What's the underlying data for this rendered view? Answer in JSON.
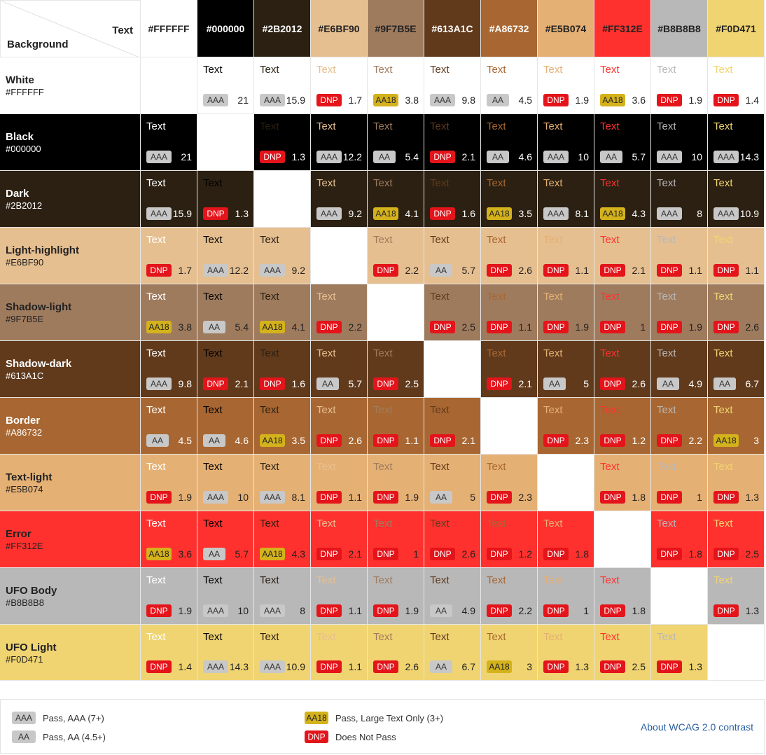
{
  "header": {
    "text_label": "Text",
    "background_label": "Background"
  },
  "sample_text": "Text",
  "colors": [
    {
      "name": "White",
      "hex": "#FFFFFF",
      "label_color": "#222222"
    },
    {
      "name": "Black",
      "hex": "#000000",
      "label_color": "#ffffff"
    },
    {
      "name": "Dark",
      "hex": "#2B2012",
      "label_color": "#ffffff"
    },
    {
      "name": "Light-highlight",
      "hex": "#E6BF90",
      "label_color": "#222222"
    },
    {
      "name": "Shadow-light",
      "hex": "#9F7B5E",
      "label_color": "#222222"
    },
    {
      "name": "Shadow-dark",
      "hex": "#613A1C",
      "label_color": "#ffffff"
    },
    {
      "name": "Border",
      "hex": "#A86732",
      "label_color": "#ffffff"
    },
    {
      "name": "Text-light",
      "hex": "#E5B074",
      "label_color": "#222222"
    },
    {
      "name": "Error",
      "hex": "#FF312E",
      "label_color": "#222222"
    },
    {
      "name": "UFO Body",
      "hex": "#B8B8B8",
      "label_color": "#222222"
    },
    {
      "name": "UFO Light",
      "hex": "#F0D471",
      "label_color": "#222222"
    }
  ],
  "grid": [
    [
      null,
      [
        "AAA",
        "21"
      ],
      [
        "AAA",
        "15.9"
      ],
      [
        "DNP",
        "1.7"
      ],
      [
        "AA18",
        "3.8"
      ],
      [
        "AAA",
        "9.8"
      ],
      [
        "AA",
        "4.5"
      ],
      [
        "DNP",
        "1.9"
      ],
      [
        "AA18",
        "3.6"
      ],
      [
        "DNP",
        "1.9"
      ],
      [
        "DNP",
        "1.4"
      ]
    ],
    [
      [
        "AAA",
        "21"
      ],
      null,
      [
        "DNP",
        "1.3"
      ],
      [
        "AAA",
        "12.2"
      ],
      [
        "AA",
        "5.4"
      ],
      [
        "DNP",
        "2.1"
      ],
      [
        "AA",
        "4.6"
      ],
      [
        "AAA",
        "10"
      ],
      [
        "AA",
        "5.7"
      ],
      [
        "AAA",
        "10"
      ],
      [
        "AAA",
        "14.3"
      ]
    ],
    [
      [
        "AAA",
        "15.9"
      ],
      [
        "DNP",
        "1.3"
      ],
      null,
      [
        "AAA",
        "9.2"
      ],
      [
        "AA18",
        "4.1"
      ],
      [
        "DNP",
        "1.6"
      ],
      [
        "AA18",
        "3.5"
      ],
      [
        "AAA",
        "8.1"
      ],
      [
        "AA18",
        "4.3"
      ],
      [
        "AAA",
        "8"
      ],
      [
        "AAA",
        "10.9"
      ]
    ],
    [
      [
        "DNP",
        "1.7"
      ],
      [
        "AAA",
        "12.2"
      ],
      [
        "AAA",
        "9.2"
      ],
      null,
      [
        "DNP",
        "2.2"
      ],
      [
        "AA",
        "5.7"
      ],
      [
        "DNP",
        "2.6"
      ],
      [
        "DNP",
        "1.1"
      ],
      [
        "DNP",
        "2.1"
      ],
      [
        "DNP",
        "1.1"
      ],
      [
        "DNP",
        "1.1"
      ]
    ],
    [
      [
        "AA18",
        "3.8"
      ],
      [
        "AA",
        "5.4"
      ],
      [
        "AA18",
        "4.1"
      ],
      [
        "DNP",
        "2.2"
      ],
      null,
      [
        "DNP",
        "2.5"
      ],
      [
        "DNP",
        "1.1"
      ],
      [
        "DNP",
        "1.9"
      ],
      [
        "DNP",
        "1"
      ],
      [
        "DNP",
        "1.9"
      ],
      [
        "DNP",
        "2.6"
      ]
    ],
    [
      [
        "AAA",
        "9.8"
      ],
      [
        "DNP",
        "2.1"
      ],
      [
        "DNP",
        "1.6"
      ],
      [
        "AA",
        "5.7"
      ],
      [
        "DNP",
        "2.5"
      ],
      null,
      [
        "DNP",
        "2.1"
      ],
      [
        "AA",
        "5"
      ],
      [
        "DNP",
        "2.6"
      ],
      [
        "AA",
        "4.9"
      ],
      [
        "AA",
        "6.7"
      ]
    ],
    [
      [
        "AA",
        "4.5"
      ],
      [
        "AA",
        "4.6"
      ],
      [
        "AA18",
        "3.5"
      ],
      [
        "DNP",
        "2.6"
      ],
      [
        "DNP",
        "1.1"
      ],
      [
        "DNP",
        "2.1"
      ],
      null,
      [
        "DNP",
        "2.3"
      ],
      [
        "DNP",
        "1.2"
      ],
      [
        "DNP",
        "2.2"
      ],
      [
        "AA18",
        "3"
      ]
    ],
    [
      [
        "DNP",
        "1.9"
      ],
      [
        "AAA",
        "10"
      ],
      [
        "AAA",
        "8.1"
      ],
      [
        "DNP",
        "1.1"
      ],
      [
        "DNP",
        "1.9"
      ],
      [
        "AA",
        "5"
      ],
      [
        "DNP",
        "2.3"
      ],
      null,
      [
        "DNP",
        "1.8"
      ],
      [
        "DNP",
        "1"
      ],
      [
        "DNP",
        "1.3"
      ]
    ],
    [
      [
        "AA18",
        "3.6"
      ],
      [
        "AA",
        "5.7"
      ],
      [
        "AA18",
        "4.3"
      ],
      [
        "DNP",
        "2.1"
      ],
      [
        "DNP",
        "1"
      ],
      [
        "DNP",
        "2.6"
      ],
      [
        "DNP",
        "1.2"
      ],
      [
        "DNP",
        "1.8"
      ],
      null,
      [
        "DNP",
        "1.8"
      ],
      [
        "DNP",
        "2.5"
      ]
    ],
    [
      [
        "DNP",
        "1.9"
      ],
      [
        "AAA",
        "10"
      ],
      [
        "AAA",
        "8"
      ],
      [
        "DNP",
        "1.1"
      ],
      [
        "DNP",
        "1.9"
      ],
      [
        "AA",
        "4.9"
      ],
      [
        "DNP",
        "2.2"
      ],
      [
        "DNP",
        "1"
      ],
      [
        "DNP",
        "1.8"
      ],
      null,
      [
        "DNP",
        "1.3"
      ]
    ],
    [
      [
        "DNP",
        "1.4"
      ],
      [
        "AAA",
        "14.3"
      ],
      [
        "AAA",
        "10.9"
      ],
      [
        "DNP",
        "1.1"
      ],
      [
        "DNP",
        "2.6"
      ],
      [
        "AA",
        "6.7"
      ],
      [
        "AA18",
        "3"
      ],
      [
        "DNP",
        "1.3"
      ],
      [
        "DNP",
        "2.5"
      ],
      [
        "DNP",
        "1.3"
      ],
      null
    ]
  ],
  "badge_styles": {
    "AAA": {
      "bg": "#c8c8c8",
      "fg": "#333333"
    },
    "AA": {
      "bg": "#c8c8c8",
      "fg": "#333333"
    },
    "AA18": {
      "bg": "#d4b21c",
      "fg": "#222222"
    },
    "DNP": {
      "bg": "#e4141b",
      "fg": "#ffffff"
    }
  },
  "legend": {
    "items": [
      {
        "badge": "AAA",
        "label": "Pass, AAA (7+)"
      },
      {
        "badge": "AA",
        "label": "Pass, AA (4.5+)"
      },
      {
        "badge": "AA18",
        "label": "Pass, Large Text Only (3+)"
      },
      {
        "badge": "DNP",
        "label": "Does Not Pass"
      }
    ],
    "link_text": "About WCAG 2.0 contrast",
    "link_color": "#2a5fa3"
  }
}
